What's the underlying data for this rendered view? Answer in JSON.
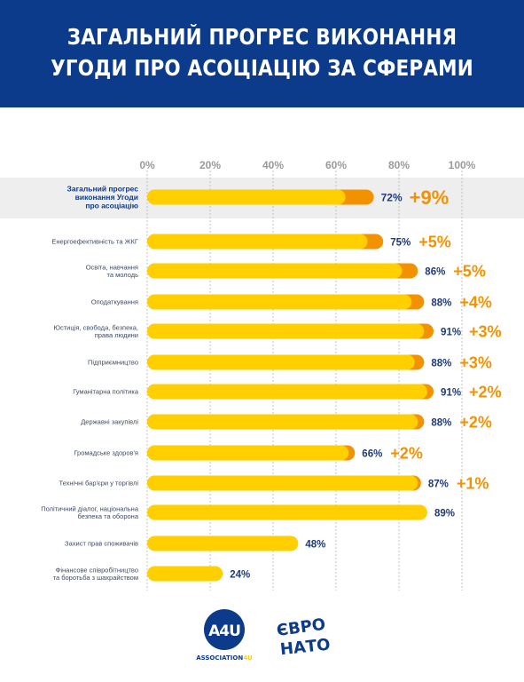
{
  "title": {
    "line1": "ЗАГАЛЬНИЙ ПРОГРЕС ВИКОНАННЯ",
    "line2": "УГОДИ ПРО АСОЦІАЦІЮ ЗА СФЕРАМИ"
  },
  "colors": {
    "header": "#0c3b8b",
    "bar_base": "#ffcf00",
    "bar_gain": "#f39200",
    "value_text": "#1f3a7a",
    "gain_text": "#f39200",
    "highlight_row": "#eeeeee"
  },
  "chart_data": {
    "type": "bar",
    "orientation": "horizontal",
    "xlim": [
      0,
      100
    ],
    "ticks": [
      "0%",
      "20%",
      "40%",
      "60%",
      "80%",
      "100%"
    ],
    "grid": true,
    "categories": [
      [
        "Загальний прогрес",
        "виконання Угоди",
        "про асоціацію"
      ],
      [
        "Енергоефективність та ЖКГ"
      ],
      [
        "Освіта, навчання",
        "та молодь"
      ],
      [
        "Оподаткування"
      ],
      [
        "Юстиція, свобода, безпека,",
        "права людини"
      ],
      [
        "Підприємництво"
      ],
      [
        "Гуманітарна політика"
      ],
      [
        "Державні закупівлі"
      ],
      [
        "Громадське здоров'я"
      ],
      [
        "Технічні бар'єри у торгівлі"
      ],
      [
        "Політичний діалог, національна",
        "безпека та оборона"
      ],
      [
        "Захист прав споживачів"
      ],
      [
        "Фінансове співробітництво",
        "та боротьба з шахрайством"
      ]
    ],
    "values": [
      72,
      75,
      86,
      88,
      91,
      88,
      91,
      88,
      66,
      87,
      89,
      48,
      24
    ],
    "value_labels": [
      "72%",
      "75%",
      "86%",
      "88%",
      "91%",
      "88%",
      "91%",
      "88%",
      "66%",
      "87%",
      "89%",
      "48%",
      "24%"
    ],
    "gains": [
      9,
      5,
      5,
      4,
      3,
      3,
      2,
      2,
      2,
      1,
      0,
      0,
      0
    ],
    "gain_labels": [
      "+9%",
      "+5%",
      "+5%",
      "+4%",
      "+3%",
      "+3%",
      "+2%",
      "+2%",
      "+2%",
      "+1%",
      "",
      "",
      ""
    ]
  },
  "logos": {
    "a4u_text": "A4U",
    "a4u_caption_prefix": "ASSOCIATION",
    "a4u_caption_suffix": "4U",
    "eu_nato_line1": "ЄВРО",
    "eu_nato_line2": "НАТО"
  }
}
